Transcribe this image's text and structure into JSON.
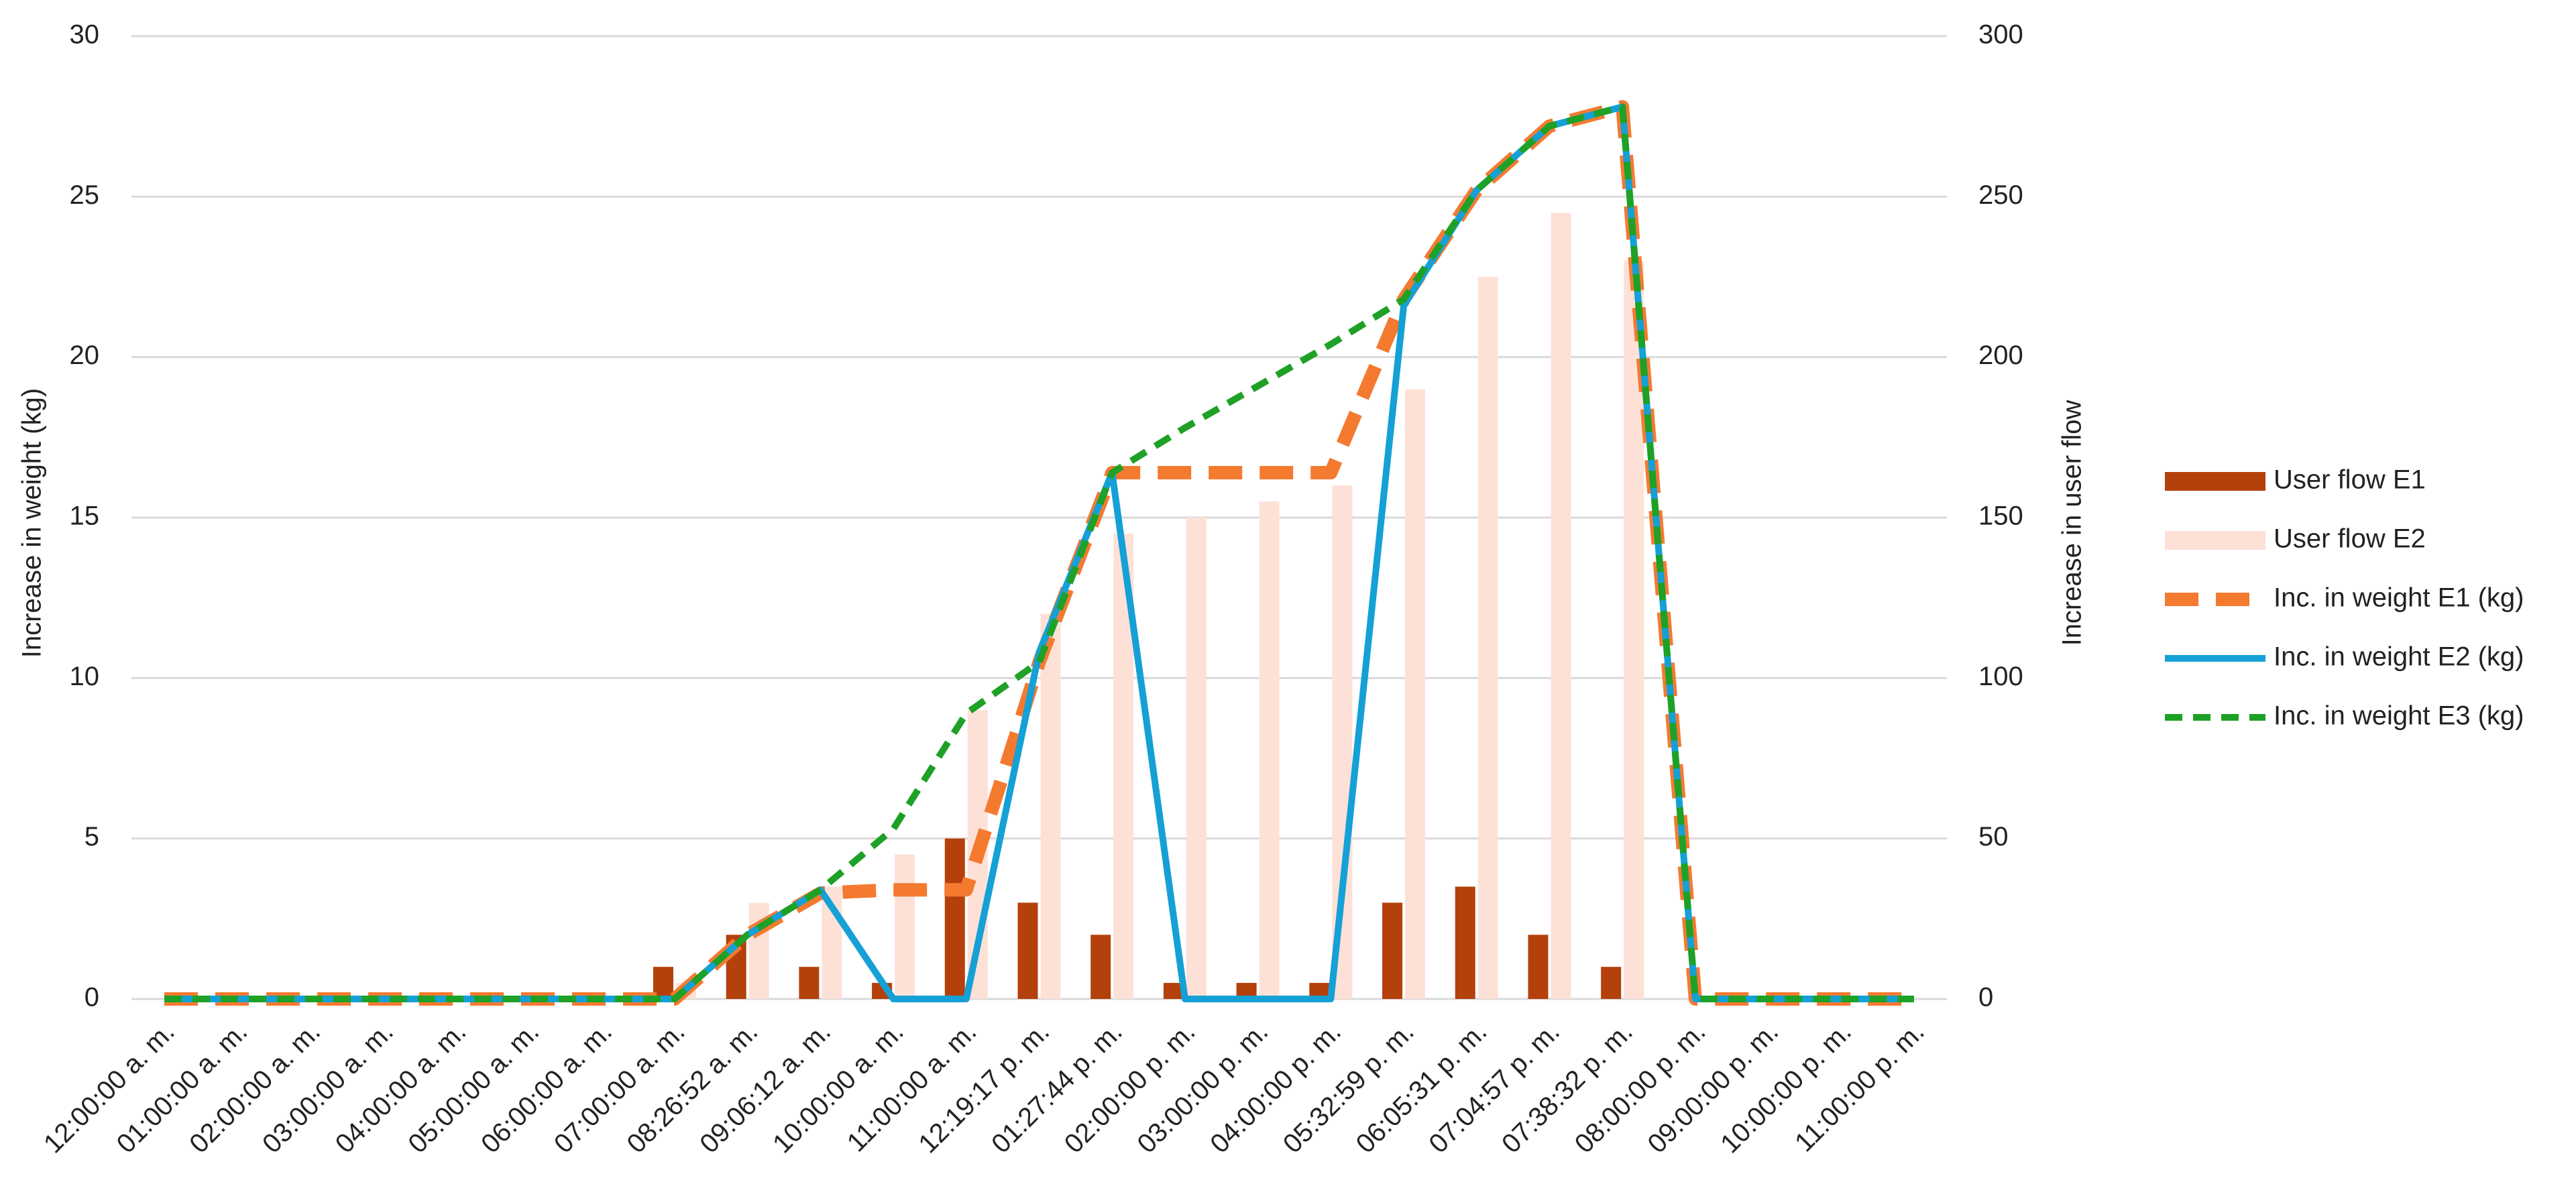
{
  "chart_data": {
    "type": "bar",
    "y_label": "Increase in weight (kg)",
    "y2_label": "Increase in user flow",
    "categories": [
      "12:00:00 a. m.",
      "01:00:00 a. m.",
      "02:00:00 a. m.",
      "03:00:00 a. m.",
      "04:00:00 a. m.",
      "05:00:00 a. m.",
      "06:00:00 a. m.",
      "07:00:00 a. m.",
      "08:26:52 a. m.",
      "09:06:12 a. m.",
      "10:00:00 a. m.",
      "11:00:00 a. m.",
      "12:19:17 p. m.",
      "01:27:44 p. m.",
      "02:00:00 p. m.",
      "03:00:00 p. m.",
      "04:00:00 p. m.",
      "05:32:59 p. m.",
      "06:05:31 p. m.",
      "07:04:57 p. m.",
      "07:38:32 p. m.",
      "08:00:00 p. m.",
      "09:00:00 p. m.",
      "10:00:00 p. m.",
      "11:00:00 p. m."
    ],
    "series": [
      {
        "name": "User flow E1",
        "type": "bar",
        "axis": "y2",
        "color": "#b4400c",
        "values": [
          0,
          0,
          0,
          0,
          0,
          0,
          0,
          10,
          20,
          10,
          5,
          50,
          30,
          20,
          5,
          5,
          5,
          30,
          35,
          20,
          10,
          0,
          0,
          0,
          0
        ]
      },
      {
        "name": "User flow E2",
        "type": "bar",
        "axis": "y2",
        "color": "#fde1d7",
        "values": [
          0,
          0,
          0,
          0,
          0,
          0,
          0,
          5,
          30,
          35,
          45,
          90,
          120,
          145,
          150,
          155,
          160,
          190,
          225,
          245,
          230,
          0,
          0,
          0,
          0
        ]
      },
      {
        "name": "Inc. in weight  E1 (kg)",
        "type": "line",
        "line_style": "long-dash",
        "color": "#f47a30",
        "values": [
          0,
          0,
          0,
          0,
          0,
          0,
          0,
          0,
          2,
          3.3,
          3.4,
          3.4,
          10.5,
          16.4,
          16.4,
          16.4,
          16.4,
          21.8,
          25.2,
          27.2,
          27.8,
          0,
          0,
          0,
          0
        ]
      },
      {
        "name": "Inc. in weight  E2 (kg)",
        "type": "line",
        "line_style": "solid",
        "color": "#15a0d6",
        "values": [
          0,
          0,
          0,
          0,
          0,
          0,
          0,
          0,
          2,
          3.4,
          0,
          0,
          10.8,
          16.4,
          0,
          0,
          0,
          21.6,
          25.2,
          27.2,
          27.8,
          0,
          0,
          0,
          0
        ]
      },
      {
        "name": "Inc. in weight  E3 (kg)",
        "type": "line",
        "line_style": "dash",
        "color": "#1ea126",
        "values": [
          0,
          0,
          0,
          0,
          0,
          0,
          0,
          0,
          2,
          3.4,
          5.3,
          8.9,
          10.5,
          16.4,
          17.8,
          19.1,
          20.4,
          21.8,
          25.2,
          27.2,
          27.8,
          0,
          0,
          0,
          0
        ]
      }
    ],
    "ylim": [
      0,
      30
    ],
    "yticks": [
      0,
      5,
      10,
      15,
      20,
      25,
      30
    ],
    "y2lim": [
      0,
      300
    ],
    "y2ticks": [
      0,
      50,
      100,
      150,
      200,
      250,
      300
    ],
    "grid": true,
    "legend": "right"
  }
}
